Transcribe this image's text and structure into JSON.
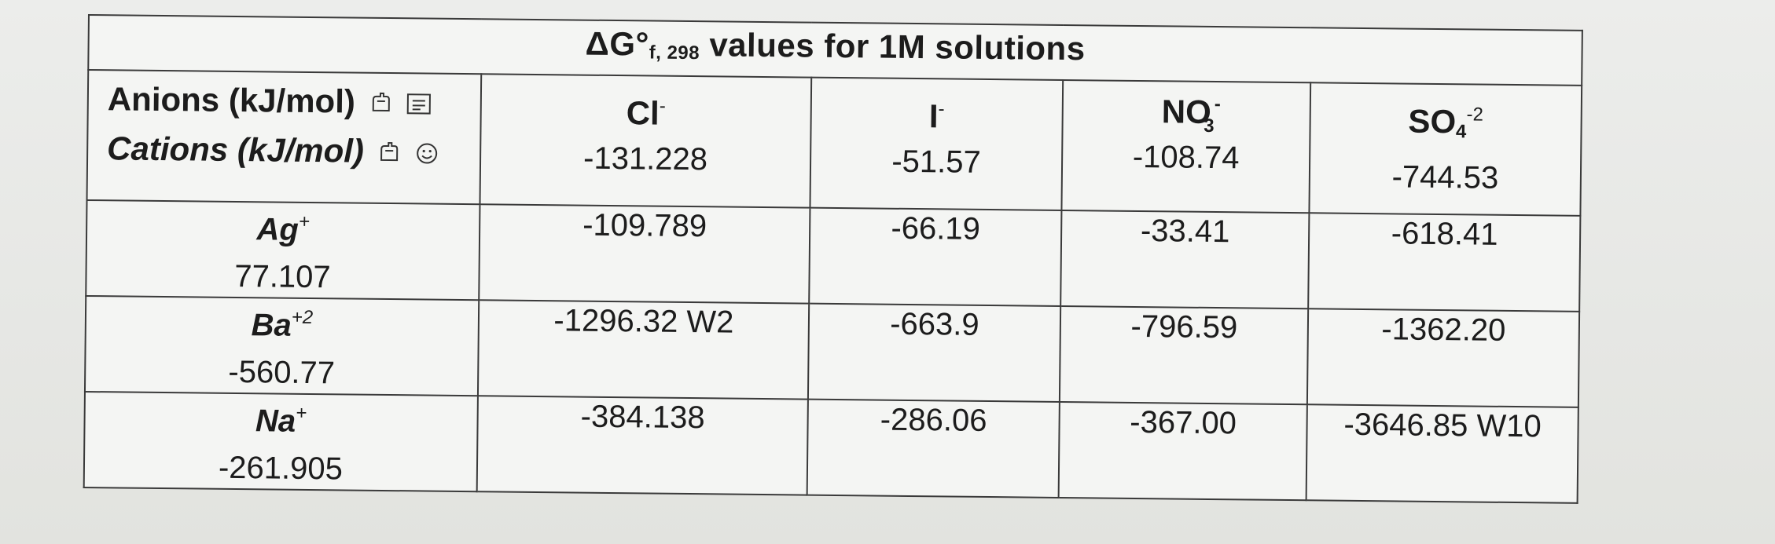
{
  "title": {
    "main": "ΔG°",
    "subscript": "f, 298",
    "rest": " values for 1M solutions"
  },
  "header_labels": {
    "anions": "Anions (kJ/mol)",
    "cations": "Cations (kJ/mol)",
    "anion_icons": [
      "pencil-hand-icon",
      "notes-icon"
    ],
    "cation_icons": [
      "pencil-hand-icon",
      "smiley-icon"
    ]
  },
  "anions": [
    {
      "base": "Cl",
      "charge": "-",
      "value": "-131.228"
    },
    {
      "base": "I",
      "charge": "-",
      "value": "-51.57"
    },
    {
      "base": "NO",
      "sub": "3",
      "charge": "-",
      "value": "-108.74"
    },
    {
      "base": "SO",
      "sub": "4",
      "charge": "-2",
      "value": "-744.53"
    }
  ],
  "cations": [
    {
      "base": "Ag",
      "charge": "+",
      "value": "77.107",
      "cells": [
        "-109.789",
        "-66.19",
        "-33.41",
        "-618.41"
      ]
    },
    {
      "base": "Ba",
      "charge": "+2",
      "value": "-560.77",
      "cells": [
        "-1296.32 W2",
        "-663.9",
        "-796.59",
        "-1362.20"
      ]
    },
    {
      "base": "Na",
      "charge": "+",
      "value": "-261.905",
      "cells": [
        "-384.138",
        "-286.06",
        "-367.00",
        "-3646.85 W10"
      ]
    }
  ]
}
